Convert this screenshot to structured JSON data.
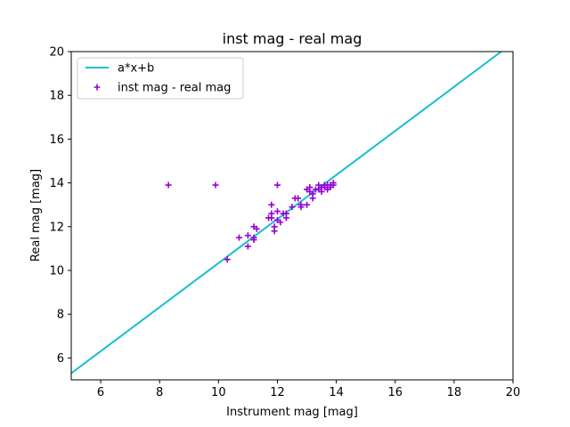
{
  "chart_data": {
    "type": "scatter",
    "title": "inst mag - real mag",
    "xlabel": "Instrument mag [mag]",
    "ylabel": "Real mag [mag]",
    "xlim": [
      5,
      20
    ],
    "ylim": [
      5,
      20
    ],
    "xticks": [
      "6",
      "8",
      "10",
      "12",
      "14",
      "16",
      "18",
      "20"
    ],
    "yticks": [
      "6",
      "8",
      "10",
      "12",
      "14",
      "16",
      "18",
      "20"
    ],
    "grid": false,
    "legend_position": "top-left",
    "colors": {
      "fit_line": "#17becf",
      "points": "#9400d3",
      "axes": "#000000"
    },
    "series": [
      {
        "name": "a*x+b",
        "kind": "line",
        "marker": "none",
        "x": [
          5,
          19.6
        ],
        "y": [
          5.3,
          20
        ]
      },
      {
        "name": "inst mag - real mag",
        "kind": "scatter",
        "marker": "plus",
        "x": [
          8.3,
          9.9,
          10.3,
          10.7,
          11.0,
          11.0,
          11.2,
          11.2,
          11.3,
          11.2,
          11.7,
          11.8,
          11.9,
          11.8,
          11.9,
          12.0,
          12.0,
          12.1,
          12.2,
          12.3,
          12.3,
          12.5,
          12.6,
          12.7,
          12.8,
          12.8,
          13.0,
          13.0,
          13.1,
          13.1,
          13.2,
          13.2,
          13.3,
          13.4,
          13.4,
          13.5,
          13.5,
          13.6,
          13.6,
          13.7,
          13.7,
          13.8,
          13.8,
          13.9,
          13.9,
          12.0,
          11.8
        ],
        "y": [
          13.9,
          13.9,
          10.5,
          11.5,
          11.1,
          11.6,
          11.4,
          12.0,
          11.9,
          11.5,
          12.4,
          12.6,
          12.0,
          12.4,
          11.8,
          12.7,
          12.3,
          12.2,
          12.6,
          12.4,
          12.6,
          12.9,
          13.3,
          13.3,
          13.0,
          12.9,
          13.0,
          13.7,
          13.6,
          13.8,
          13.3,
          13.5,
          13.7,
          13.7,
          13.9,
          13.8,
          13.6,
          13.8,
          13.9,
          13.7,
          13.9,
          13.9,
          13.8,
          14.0,
          13.9,
          13.9,
          13.0
        ]
      }
    ]
  }
}
